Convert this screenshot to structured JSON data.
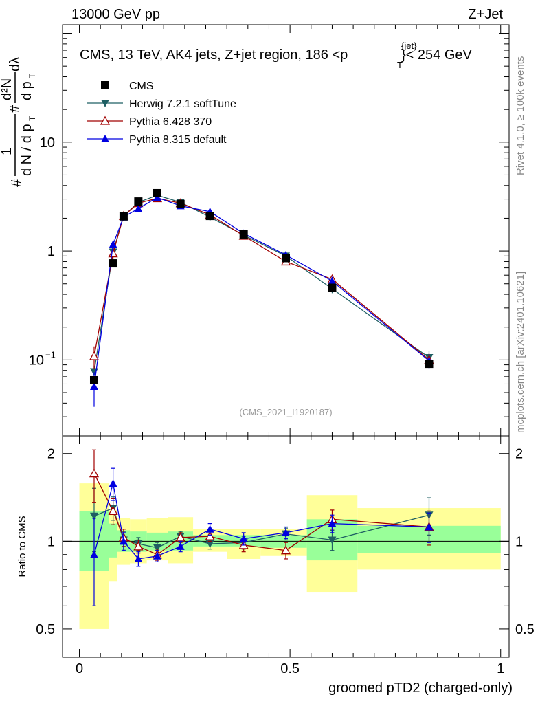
{
  "header": {
    "energy_label": "13000 GeV pp",
    "process_label": "Z+Jet"
  },
  "side_labels": {
    "rivet": "Rivet 4.1.0, ≥ 100k events",
    "mcplots": "mcplots.cern.ch [arXiv:2401.10621]"
  },
  "chart_data": {
    "type": "line",
    "title_main": "CMS, 13 TeV, AK4 jets, Z+jet region, 186 <",
    "title_pt": "p",
    "title_sub": "T",
    "title_sup": "{jet}",
    "title_tail": "}< 254 GeV",
    "reference": "(CMS_2021_I1920187)",
    "xlabel": "groomed pTD2 (charged-only)",
    "ylabel_top_prefix": "#",
    "ylabel_top_frac1_num": "1",
    "ylabel_top_frac1_den": "d N / d p",
    "ylabel_top_T": "T",
    "ylabel_top_hash": "#",
    "ylabel_top_frac2_num": "d²N",
    "ylabel_top_frac2_den": "d p",
    "ylabel_top_frac2_T": "T",
    "ylabel_top_dlambda": "dλ",
    "ylabel_ratio": "Ratio to CMS",
    "xlim": [
      -0.04,
      1.02
    ],
    "ylim_main": [
      0.02,
      120
    ],
    "ylim_ratio": [
      0.4,
      2.3
    ],
    "xticks": [
      {
        "v": 0,
        "label": "0"
      },
      {
        "v": 0.5,
        "label": "0.5"
      },
      {
        "v": 1,
        "label": "1"
      }
    ],
    "yticks_main": [
      {
        "v": 0.1,
        "label": "10",
        "sup": "−1"
      },
      {
        "v": 1,
        "label": "1",
        "sup": ""
      },
      {
        "v": 10,
        "label": "10",
        "sup": ""
      }
    ],
    "yticks_ratio": [
      {
        "v": 0.5,
        "label": "0.5"
      },
      {
        "v": 1,
        "label": "1"
      },
      {
        "v": 2,
        "label": "2"
      }
    ],
    "x": [
      0.035,
      0.08,
      0.105,
      0.14,
      0.185,
      0.24,
      0.31,
      0.39,
      0.49,
      0.6,
      0.83
    ],
    "bins": [
      [
        0.0,
        0.07,
        0.0,
        0.07
      ],
      [
        0.07,
        0.09,
        0.07,
        0.09
      ],
      [
        0.09,
        0.12,
        0.09,
        0.12
      ],
      [
        0.12,
        0.16,
        0.12,
        0.16
      ],
      [
        0.16,
        0.21,
        0.16,
        0.21
      ],
      [
        0.21,
        0.27,
        0.21,
        0.27
      ],
      [
        0.27,
        0.35,
        0.27,
        0.35
      ],
      [
        0.35,
        0.43,
        0.35,
        0.43
      ],
      [
        0.43,
        0.54,
        0.43,
        0.54
      ],
      [
        0.54,
        0.66,
        0.54,
        0.66
      ],
      [
        0.66,
        1.0,
        0.66,
        1.0
      ]
    ],
    "band_green": [
      [
        0.79,
        1.27
      ],
      [
        0.88,
        1.15
      ],
      [
        0.92,
        1.09
      ],
      [
        0.92,
        1.08
      ],
      [
        0.93,
        1.07
      ],
      [
        0.93,
        1.08
      ],
      [
        0.96,
        1.05
      ],
      [
        0.96,
        1.05
      ],
      [
        0.95,
        1.05
      ],
      [
        0.86,
        1.19
      ],
      [
        0.91,
        1.13
      ]
    ],
    "band_yellow": [
      [
        0.5,
        1.58
      ],
      [
        0.73,
        1.28
      ],
      [
        0.83,
        1.2
      ],
      [
        0.84,
        1.19
      ],
      [
        0.86,
        1.2
      ],
      [
        0.84,
        1.21
      ],
      [
        0.92,
        1.1
      ],
      [
        0.87,
        1.1
      ],
      [
        0.89,
        1.1
      ],
      [
        0.67,
        1.44
      ],
      [
        0.8,
        1.3
      ]
    ],
    "band_split": 0.66,
    "series": [
      {
        "name": "CMS",
        "color": "#000000",
        "marker": "square",
        "values": [
          0.065,
          0.77,
          2.08,
          2.85,
          3.4,
          2.7,
          2.1,
          1.42,
          0.86,
          0.46,
          0.092
        ],
        "errors": [
          0.004,
          0.04,
          0.06,
          0.07,
          0.08,
          0.07,
          0.05,
          0.04,
          0.03,
          0.02,
          0.004
        ],
        "ratio": [
          1,
          1,
          1,
          1,
          1,
          1,
          1,
          1,
          1,
          1,
          1
        ],
        "ratio_err": [
          0,
          0,
          0,
          0,
          0,
          0,
          0,
          0,
          0,
          0,
          0
        ]
      },
      {
        "name": "Herwig 7.2.1 softTune",
        "color": "#1f5f63",
        "marker": "triangle-down",
        "values": [
          0.078,
          0.98,
          2.1,
          2.8,
          3.25,
          2.8,
          2.05,
          1.4,
          0.9,
          0.45,
          0.105
        ],
        "errors": [
          0.01,
          0.1,
          0.15,
          0.15,
          0.15,
          0.12,
          0.1,
          0.07,
          0.06,
          0.04,
          0.015
        ],
        "ratio": [
          1.22,
          1.3,
          1.01,
          0.98,
          0.95,
          1.04,
          0.98,
          0.99,
          1.06,
          1.01,
          1.23
        ],
        "ratio_err": [
          0.3,
          0.12,
          0.07,
          0.05,
          0.04,
          0.04,
          0.04,
          0.05,
          0.05,
          0.08,
          0.18
        ]
      },
      {
        "name": "Pythia 6.428 370",
        "color": "#a10000",
        "marker": "triangle-open",
        "values": [
          0.108,
          0.95,
          2.1,
          2.75,
          3.05,
          2.75,
          2.15,
          1.38,
          0.8,
          0.55,
          0.1
        ],
        "errors": [
          0.025,
          0.1,
          0.15,
          0.15,
          0.15,
          0.12,
          0.1,
          0.07,
          0.06,
          0.05,
          0.015
        ],
        "ratio": [
          1.71,
          1.27,
          1.03,
          0.96,
          0.9,
          1.03,
          1.04,
          0.97,
          0.93,
          1.19,
          1.12
        ],
        "ratio_err": [
          0.35,
          0.13,
          0.07,
          0.05,
          0.04,
          0.04,
          0.04,
          0.05,
          0.06,
          0.09,
          0.15
        ]
      },
      {
        "name": "Pythia 8.315 default",
        "color": "#0000e0",
        "marker": "triangle-up",
        "values": [
          0.057,
          1.15,
          2.05,
          2.45,
          3.1,
          2.6,
          2.3,
          1.45,
          0.92,
          0.53,
          0.098
        ],
        "errors": [
          0.02,
          0.12,
          0.15,
          0.15,
          0.15,
          0.12,
          0.1,
          0.07,
          0.06,
          0.05,
          0.015
        ],
        "ratio": [
          0.9,
          1.58,
          1.0,
          0.87,
          0.89,
          0.96,
          1.1,
          1.02,
          1.07,
          1.15,
          1.12
        ],
        "ratio_err": [
          0.3,
          0.2,
          0.07,
          0.05,
          0.04,
          0.04,
          0.05,
          0.05,
          0.05,
          0.08,
          0.13
        ]
      }
    ]
  }
}
